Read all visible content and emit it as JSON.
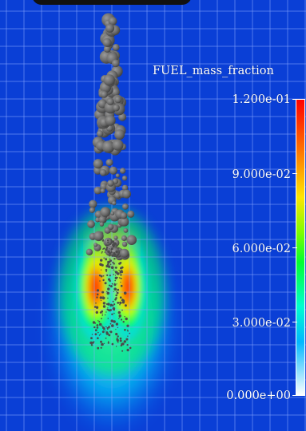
{
  "legend": {
    "title": "FUEL_mass_fraction",
    "ticks": [
      "1.200e-01",
      "9.000e-02",
      "6.000e-02",
      "3.000e-02",
      "0.000e+00"
    ],
    "colormap": [
      "#ffffff",
      "#00b8ff",
      "#00ffd0",
      "#00ff30",
      "#7cff00",
      "#ffe600",
      "#ff7a00",
      "#ff0000"
    ]
  },
  "scene": {
    "background_color": "#0a3fd6",
    "grid_color": "#6f94ff",
    "droplet_color": "#6b6b6b"
  }
}
